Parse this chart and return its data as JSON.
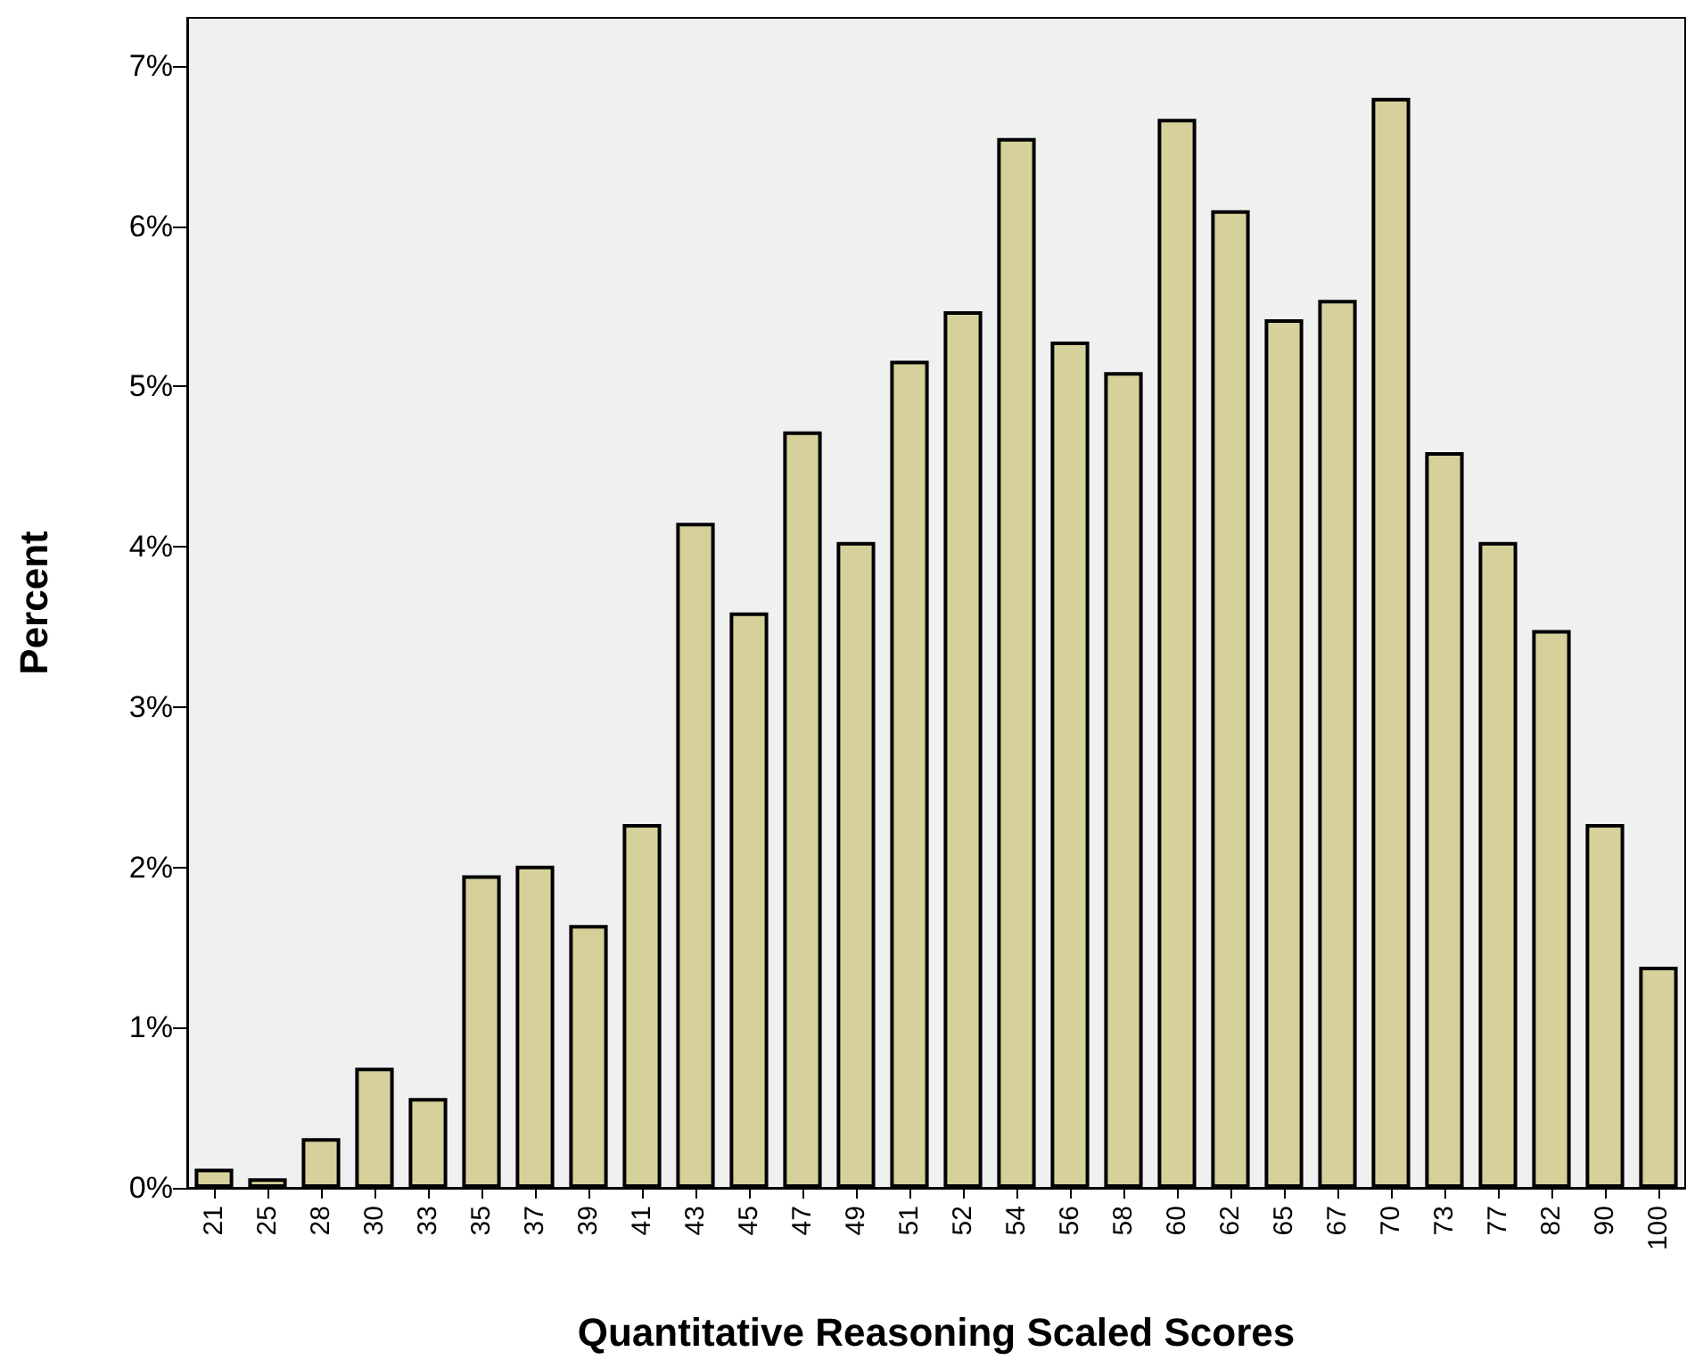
{
  "chart_data": {
    "type": "bar",
    "xlabel": "Quantitative Reasoning Scaled Scores",
    "ylabel": "Percent",
    "categories": [
      "21",
      "25",
      "28",
      "30",
      "33",
      "35",
      "37",
      "39",
      "41",
      "43",
      "45",
      "47",
      "49",
      "51",
      "52",
      "54",
      "56",
      "58",
      "60",
      "62",
      "65",
      "67",
      "70",
      "73",
      "77",
      "82",
      "90",
      "100"
    ],
    "values": [
      0.12,
      0.06,
      0.31,
      0.75,
      0.56,
      1.95,
      2.01,
      1.64,
      2.27,
      4.15,
      3.59,
      4.72,
      4.03,
      5.16,
      5.47,
      6.55,
      5.28,
      5.09,
      6.67,
      6.1,
      5.42,
      5.54,
      6.8,
      4.59,
      4.03,
      3.48,
      2.27,
      1.38
    ],
    "color": "#d6d09a",
    "ylim": [
      0,
      7.3
    ],
    "yticks": [
      {
        "value": 0,
        "label": "0%"
      },
      {
        "value": 1,
        "label": "1%"
      },
      {
        "value": 2,
        "label": "2%"
      },
      {
        "value": 3,
        "label": "3%"
      },
      {
        "value": 4,
        "label": "4%"
      },
      {
        "value": 5,
        "label": "5%"
      },
      {
        "value": 6,
        "label": "6%"
      },
      {
        "value": 7,
        "label": "7%"
      }
    ],
    "grid": false
  }
}
